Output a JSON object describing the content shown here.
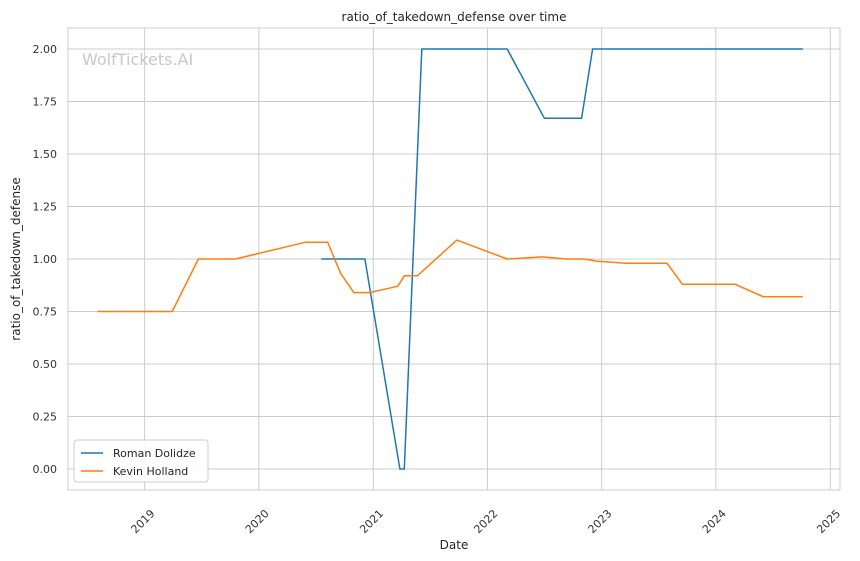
{
  "chart_data": {
    "type": "line",
    "title": "ratio_of_takedown_defense over time",
    "xlabel": "Date",
    "ylabel": "ratio_of_takedown_defense",
    "watermark": "WolfTickets.AI",
    "xlim": [
      "2018-05-01",
      "2025-02-01"
    ],
    "ylim": [
      -0.1,
      2.1
    ],
    "x_ticks": [
      "2019-01-01",
      "2020-01-01",
      "2021-01-01",
      "2022-01-01",
      "2023-01-01",
      "2024-01-01",
      "2025-01-01"
    ],
    "x_tick_labels": [
      "2019",
      "2020",
      "2021",
      "2022",
      "2023",
      "2024",
      "2025"
    ],
    "y_ticks": [
      0.0,
      0.25,
      0.5,
      0.75,
      1.0,
      1.25,
      1.5,
      1.75,
      2.0
    ],
    "y_tick_labels": [
      "0.00",
      "0.25",
      "0.50",
      "0.75",
      "1.00",
      "1.25",
      "1.50",
      "1.75",
      "2.00"
    ],
    "grid": true,
    "legend_position": "lower-left",
    "series": [
      {
        "name": "Roman Dolidze",
        "color": "#1f77b4",
        "x": [
          "2020-07-18",
          "2020-12-05",
          "2021-03-27",
          "2021-04-10",
          "2021-06-05",
          "2022-03-05",
          "2022-07-02",
          "2022-10-29",
          "2022-12-03",
          "2024-10-05"
        ],
        "y": [
          1.0,
          1.0,
          0.0,
          0.0,
          2.0,
          2.0,
          1.67,
          1.67,
          2.0,
          2.0
        ]
      },
      {
        "name": "Kevin Holland",
        "color": "#ff7f0e",
        "x": [
          "2018-08-04",
          "2019-03-30",
          "2019-06-22",
          "2019-10-18",
          "2020-05-30",
          "2020-08-08",
          "2020-09-19",
          "2020-10-31",
          "2020-12-19",
          "2021-03-20",
          "2021-04-10",
          "2021-05-22",
          "2021-09-25",
          "2022-03-05",
          "2022-06-25",
          "2022-09-10",
          "2022-11-05",
          "2022-12-17",
          "2023-03-18",
          "2023-07-29",
          "2023-09-16",
          "2024-03-02",
          "2024-06-01",
          "2024-10-05"
        ],
        "y": [
          0.75,
          0.75,
          1.0,
          1.0,
          1.08,
          1.08,
          0.93,
          0.84,
          0.84,
          0.87,
          0.92,
          0.92,
          1.09,
          1.0,
          1.01,
          1.0,
          1.0,
          0.99,
          0.98,
          0.98,
          0.88,
          0.88,
          0.82,
          0.82
        ]
      }
    ]
  }
}
